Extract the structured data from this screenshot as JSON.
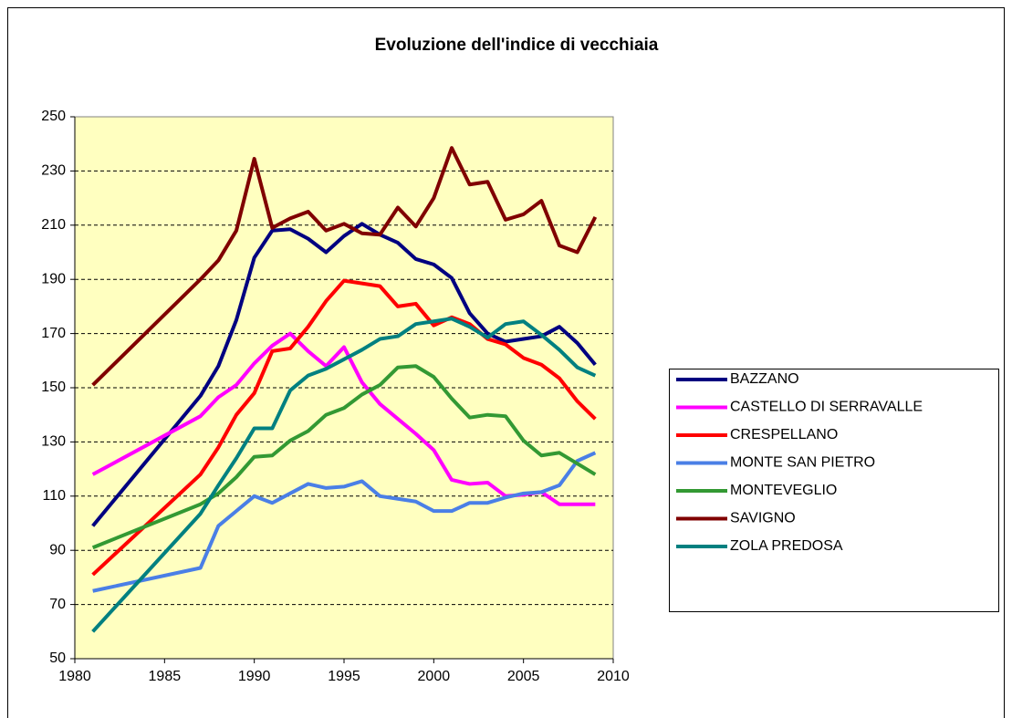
{
  "chart_data": {
    "type": "line",
    "title": "Evoluzione dell'indice di vecchiaia",
    "x": [
      1981,
      1987,
      1988,
      1989,
      1990,
      1991,
      1992,
      1993,
      1994,
      1995,
      1996,
      1997,
      1998,
      1999,
      2000,
      2001,
      2002,
      2003,
      2004,
      2005,
      2006,
      2007,
      2008,
      2009
    ],
    "series": [
      {
        "name": "BAZZANO",
        "color": "#000080",
        "values": [
          99,
          147,
          158,
          175,
          198,
          208,
          208.5,
          205,
          200,
          206,
          210.5,
          206.5,
          203.5,
          197.5,
          195.5,
          190.5,
          177.5,
          170,
          167,
          168,
          169,
          172.5,
          166.5,
          158.5
        ]
      },
      {
        "name": "CASTELLO DI SERRAVALLE",
        "color": "#ff00ff",
        "values": [
          118,
          139.5,
          146.5,
          151,
          159,
          165.5,
          170,
          163.5,
          158,
          165,
          152,
          144,
          138.5,
          133,
          127,
          116,
          114.5,
          115,
          110,
          110.5,
          111.5,
          107,
          107,
          107
        ]
      },
      {
        "name": "CRESPELLANO",
        "color": "#ff0000",
        "values": [
          81,
          118,
          128,
          140,
          148,
          163.5,
          164.5,
          172.5,
          182,
          189.5,
          188.5,
          187.5,
          180,
          181,
          173,
          176,
          173.5,
          168,
          166,
          161,
          158.5,
          153.5,
          145,
          138.5
        ]
      },
      {
        "name": "MONTE SAN PIETRO",
        "color": "#4a7fe6",
        "values": [
          75,
          83.5,
          99,
          104.5,
          110,
          107.5,
          111,
          114.5,
          113,
          113.5,
          115.5,
          110,
          109,
          108,
          104.5,
          104.5,
          107.5,
          107.5,
          109.5,
          111,
          111.5,
          114,
          123,
          126
        ]
      },
      {
        "name": "MONTEVEGLIO",
        "color": "#339933",
        "values": [
          91,
          107,
          111,
          117,
          124.5,
          125,
          130.5,
          134,
          140,
          142.5,
          147.5,
          151,
          157.5,
          158,
          154,
          146,
          139,
          140,
          139.5,
          130.5,
          125,
          126,
          122,
          118
        ]
      },
      {
        "name": "SAVIGNO",
        "color": "#800000",
        "values": [
          151,
          190,
          197,
          208,
          234.5,
          209,
          212.5,
          215,
          208,
          210.5,
          207,
          206.5,
          216.5,
          209.5,
          220,
          238.5,
          225,
          226,
          212,
          214,
          219,
          202.5,
          200,
          213
        ]
      },
      {
        "name": "ZOLA PREDOSA",
        "color": "#008080",
        "values": [
          60,
          103.5,
          114,
          124,
          135,
          135,
          149,
          154.5,
          157,
          160.5,
          164,
          168,
          169,
          173.5,
          174.5,
          175.5,
          172.5,
          168.5,
          173.5,
          174.5,
          169.5,
          164,
          157.5,
          154.5
        ]
      }
    ],
    "xlim": [
      1980,
      2010
    ],
    "xticks": [
      1980,
      1985,
      1990,
      1995,
      2000,
      2005,
      2010
    ],
    "ylim": [
      50,
      250
    ],
    "yticks": [
      50,
      70,
      90,
      110,
      130,
      150,
      170,
      190,
      210,
      230,
      250
    ],
    "grid": true,
    "legend": "right"
  }
}
